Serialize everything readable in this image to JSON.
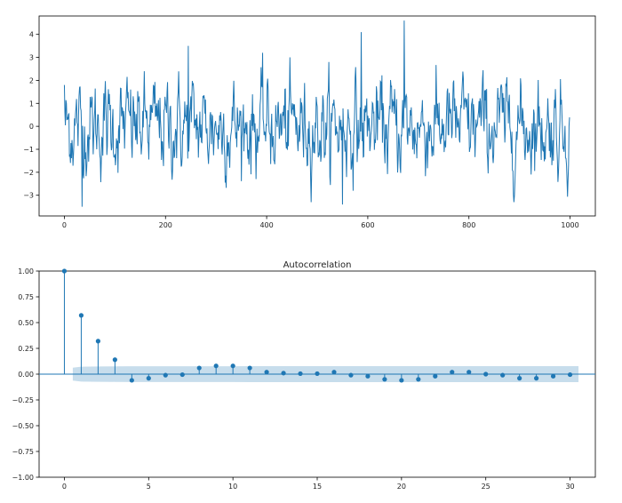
{
  "chart_data": [
    {
      "type": "line",
      "title": "",
      "xlabel": "",
      "ylabel": "",
      "xlim": [
        -50,
        1050
      ],
      "ylim": [
        -3.9,
        4.8
      ],
      "xticks": [
        0,
        200,
        400,
        600,
        800,
        1000
      ],
      "yticks": [
        -3,
        -2,
        -1,
        0,
        1,
        2,
        3,
        4
      ],
      "x_range": [
        0,
        999
      ],
      "n_points": 1000,
      "color": "#1f77b4",
      "notable_points": [
        {
          "x": 0,
          "y": 1.8
        },
        {
          "x": 35,
          "y": -3.5
        },
        {
          "x": 245,
          "y": 3.5
        },
        {
          "x": 550,
          "y": -3.4
        },
        {
          "x": 587,
          "y": 4.1
        },
        {
          "x": 672,
          "y": 4.6
        }
      ]
    },
    {
      "type": "stem",
      "title": "Autocorrelation",
      "xlabel": "",
      "ylabel": "",
      "xlim": [
        -1.5,
        31.5
      ],
      "ylim": [
        -1.0,
        1.0
      ],
      "xticks": [
        0,
        5,
        10,
        15,
        20,
        25,
        30
      ],
      "ytick_labels": [
        "1.00",
        "0.75",
        "0.50",
        "0.25",
        "0.00",
        "−0.25",
        "−0.50",
        "−0.75",
        "−1.00"
      ],
      "lags": [
        0,
        1,
        2,
        3,
        4,
        5,
        6,
        7,
        8,
        9,
        10,
        11,
        12,
        13,
        14,
        15,
        16,
        17,
        18,
        19,
        20,
        21,
        22,
        23,
        24,
        25,
        26,
        27,
        28,
        29,
        30
      ],
      "values": [
        1.0,
        0.57,
        0.32,
        0.14,
        -0.06,
        -0.04,
        -0.01,
        -0.005,
        0.06,
        0.08,
        0.08,
        0.06,
        0.02,
        0.01,
        0.005,
        0.005,
        0.02,
        -0.01,
        -0.02,
        -0.05,
        -0.06,
        -0.05,
        -0.02,
        0.02,
        0.02,
        0.0,
        -0.01,
        -0.04,
        -0.04,
        -0.02,
        -0.005
      ],
      "confidence_band": [
        0.062,
        0.072,
        0.074,
        0.075,
        0.076,
        0.076,
        0.076,
        0.076,
        0.077,
        0.077,
        0.077,
        0.078,
        0.078,
        0.078,
        0.078,
        0.078,
        0.078,
        0.078,
        0.078,
        0.078,
        0.078,
        0.078,
        0.078,
        0.078,
        0.078,
        0.078,
        0.078,
        0.078,
        0.078,
        0.078,
        0.078
      ],
      "color": "#1f77b4"
    }
  ]
}
